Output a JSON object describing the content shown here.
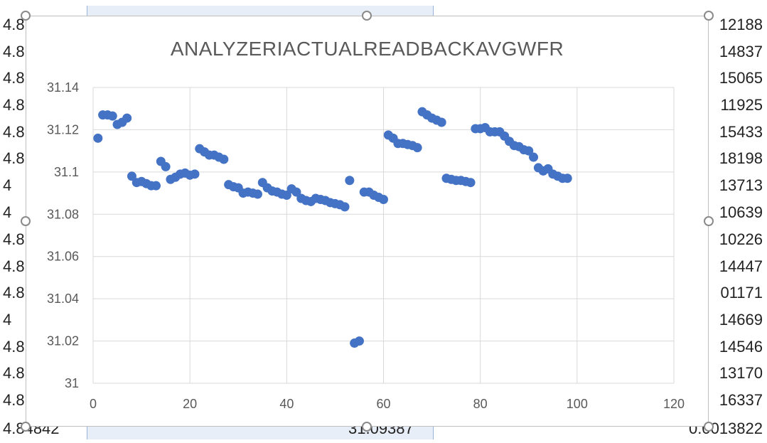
{
  "spreadsheet": {
    "left_cells": [
      "4.8",
      "4.8",
      "4.8",
      "4.8",
      "4.8",
      "4.8",
      "4",
      "4",
      "4.8",
      "4.8",
      "4.8",
      "4",
      "4.8",
      "4.8",
      "4.8",
      "4.84842"
    ],
    "right_cells": [
      "12188",
      "14837",
      "15065",
      "11925",
      "15433",
      "18198",
      "13713",
      "10639",
      "10226",
      "14447",
      "01171",
      "14669",
      "14546",
      "13170",
      "16337",
      "0.0013822"
    ],
    "bottom_center": "31.09387"
  },
  "chart_data": {
    "type": "scatter",
    "title": "ANALYZERIACTUALREADBACKAVGWFR",
    "xlabel": "",
    "ylabel": "",
    "xlim": [
      0,
      120
    ],
    "ylim": [
      31,
      31.14
    ],
    "x_ticks": [
      0,
      20,
      40,
      60,
      80,
      100,
      120
    ],
    "y_ticks": [
      31,
      31.02,
      31.04,
      31.06,
      31.08,
      31.1,
      31.12,
      31.14
    ],
    "grid": true,
    "legend": "none",
    "marker_color": "#4472c4",
    "series": [
      {
        "x": [
          1,
          2,
          3,
          4,
          5,
          6,
          7,
          8,
          9,
          10,
          11,
          12,
          13,
          14,
          15,
          16,
          17,
          18,
          19,
          20,
          21,
          22,
          23,
          24,
          25,
          26,
          27,
          28,
          29,
          30,
          31,
          32,
          33,
          34,
          35,
          36,
          37,
          38,
          39,
          40,
          41,
          42,
          43,
          44,
          45,
          46,
          47,
          48,
          49,
          50,
          51,
          52,
          53,
          54,
          55,
          56,
          57,
          58,
          59,
          60,
          61,
          62,
          63,
          64,
          65,
          66,
          67,
          68,
          69,
          70,
          71,
          72,
          73,
          74,
          75,
          76,
          77,
          78,
          79,
          80,
          81,
          82,
          83,
          84,
          85,
          86,
          87,
          88,
          89,
          90,
          91,
          92,
          93,
          94,
          95,
          96,
          97,
          98
        ],
        "y": [
          31.116,
          31.127,
          31.127,
          31.1265,
          31.1225,
          31.1235,
          31.1255,
          31.098,
          31.095,
          31.0955,
          31.0945,
          31.0935,
          31.0935,
          31.105,
          31.1025,
          31.0965,
          31.0975,
          31.099,
          31.0995,
          31.0985,
          31.099,
          31.111,
          31.1095,
          31.108,
          31.108,
          31.107,
          31.106,
          31.094,
          31.093,
          31.0925,
          31.09,
          31.0905,
          31.09,
          31.0895,
          31.095,
          31.0925,
          31.091,
          31.0905,
          31.0895,
          31.089,
          31.092,
          31.0905,
          31.0875,
          31.0865,
          31.086,
          31.0875,
          31.087,
          31.0865,
          31.0855,
          31.085,
          31.0845,
          31.0835,
          31.096,
          31.019,
          31.02,
          31.0905,
          31.0905,
          31.089,
          31.088,
          31.087,
          31.1175,
          31.116,
          31.1135,
          31.1135,
          31.113,
          31.1125,
          31.1115,
          31.1285,
          31.127,
          31.1255,
          31.1245,
          31.1235,
          31.097,
          31.0965,
          31.096,
          31.096,
          31.0955,
          31.095,
          31.1205,
          31.1205,
          31.121,
          31.119,
          31.119,
          31.119,
          31.117,
          31.1145,
          31.1125,
          31.112,
          31.1105,
          31.11,
          31.107,
          31.102,
          31.1005,
          31.1015,
          31.099,
          31.098,
          31.097,
          31.097
        ]
      }
    ]
  }
}
